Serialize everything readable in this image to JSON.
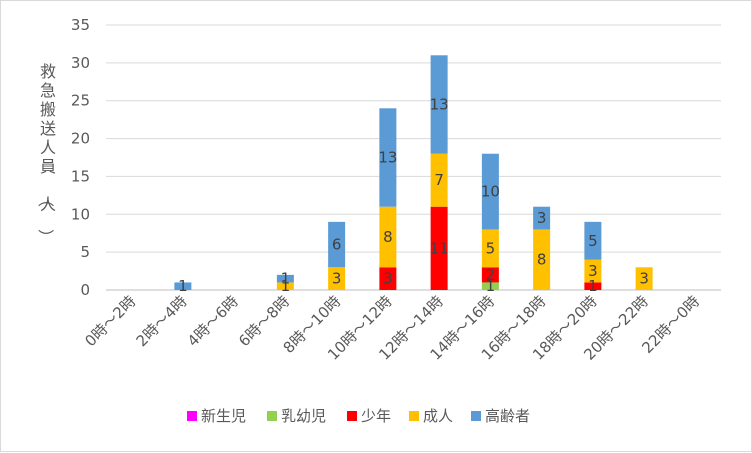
{
  "chart_data": {
    "type": "bar",
    "stacked": true,
    "ylabel": "救急搬送人員（人）",
    "ylim": [
      0,
      35
    ],
    "yticks": [
      0,
      5,
      10,
      15,
      20,
      25,
      30,
      35
    ],
    "grid": true,
    "legend_position": "bottom",
    "categories": [
      "0時～2時",
      "2時～4時",
      "4時～6時",
      "6時～8時",
      "8時～10時",
      "10時～12時",
      "12時～14時",
      "14時～16時",
      "16時～18時",
      "18時～20時",
      "20時～22時",
      "22時～0時"
    ],
    "series": [
      {
        "name": "新生児",
        "color": "#ff00ff",
        "values": [
          0,
          0,
          0,
          0,
          0,
          0,
          0,
          0,
          0,
          0,
          0,
          0
        ]
      },
      {
        "name": "乳幼児",
        "color": "#92d050",
        "values": [
          0,
          0,
          0,
          0,
          0,
          0,
          0,
          1,
          0,
          0,
          0,
          0
        ]
      },
      {
        "name": "少年",
        "color": "#ff0000",
        "values": [
          0,
          0,
          0,
          0,
          0,
          3,
          11,
          2,
          0,
          1,
          0,
          0
        ]
      },
      {
        "name": "成人",
        "color": "#ffc000",
        "values": [
          0,
          0,
          0,
          1,
          3,
          8,
          7,
          5,
          8,
          3,
          3,
          0
        ]
      },
      {
        "name": "高齢者",
        "color": "#5b9bd5",
        "values": [
          0,
          1,
          0,
          1,
          6,
          13,
          13,
          10,
          3,
          5,
          0,
          0
        ]
      }
    ]
  }
}
